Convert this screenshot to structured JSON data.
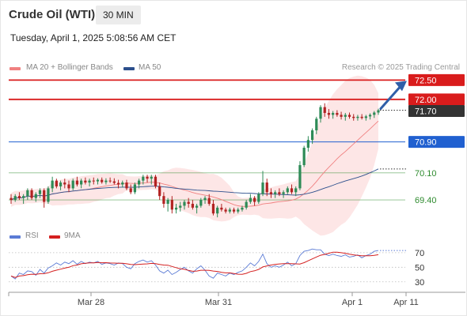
{
  "header": {
    "title": "Crude Oil (WTI)",
    "timeframe": "30 MIN",
    "datetime": "Tuesday, April 1, 2025 5:08:56 AM CET"
  },
  "legend": {
    "ma20": {
      "label": "MA 20 + Bollinger Bands",
      "color": "#f08080"
    },
    "ma50": {
      "label": "MA 50",
      "color": "#2c4f8c"
    },
    "credit": "Research © 2025 Trading Central"
  },
  "rsi_legend": {
    "rsi": {
      "label": "RSI",
      "color": "#5b7bd5"
    },
    "ma9": {
      "label": "9MA",
      "color": "#d42020"
    }
  },
  "colors": {
    "up": "#2e8b57",
    "down": "#b22222",
    "resistance": "#d91c1c",
    "pivot": "#2060d0",
    "support": "#2e8b2e",
    "band_fill": "#fde2e2",
    "price_box": "#333333",
    "arrow": "#2f5fa8"
  },
  "chart_data": {
    "type": "candlestick",
    "x_ticks": [
      "Mar 28",
      "Mar 31",
      "Apr 1",
      "Apr 11"
    ],
    "ylim": [
      68.85,
      72.65
    ],
    "levels": [
      {
        "value": 72.5,
        "label": "72.50",
        "kind": "resistance"
      },
      {
        "value": 72.0,
        "label": "72.00",
        "kind": "resistance"
      },
      {
        "value": 70.9,
        "label": "70.90",
        "kind": "pivot"
      },
      {
        "value": 70.1,
        "label": "70.10",
        "kind": "support"
      },
      {
        "value": 69.4,
        "label": "69.40",
        "kind": "support"
      }
    ],
    "last_price": {
      "value": 71.7,
      "label": "71.70"
    },
    "ohlc": [
      [
        69.45,
        69.55,
        69.3,
        69.4
      ],
      [
        69.4,
        69.55,
        69.35,
        69.5
      ],
      [
        69.5,
        69.6,
        69.4,
        69.45
      ],
      [
        69.45,
        69.55,
        69.3,
        69.5
      ],
      [
        69.5,
        69.7,
        69.4,
        69.65
      ],
      [
        69.65,
        69.7,
        69.4,
        69.45
      ],
      [
        69.45,
        69.6,
        69.35,
        69.55
      ],
      [
        69.55,
        69.7,
        69.45,
        69.65
      ],
      [
        69.65,
        69.7,
        69.2,
        69.35
      ],
      [
        69.35,
        69.75,
        69.3,
        69.7
      ],
      [
        69.7,
        70.0,
        69.6,
        69.9
      ],
      [
        69.9,
        69.95,
        69.7,
        69.75
      ],
      [
        69.75,
        69.9,
        69.65,
        69.85
      ],
      [
        69.85,
        69.95,
        69.7,
        69.8
      ],
      [
        69.8,
        69.9,
        69.6,
        69.7
      ],
      [
        69.7,
        69.95,
        69.65,
        69.9
      ],
      [
        69.9,
        70.0,
        69.75,
        69.8
      ],
      [
        69.8,
        69.95,
        69.7,
        69.9
      ],
      [
        69.9,
        69.98,
        69.8,
        69.85
      ],
      [
        69.85,
        69.95,
        69.75,
        69.9
      ],
      [
        69.9,
        69.98,
        69.8,
        69.88
      ],
      [
        69.88,
        69.96,
        69.8,
        69.92
      ],
      [
        69.92,
        69.98,
        69.82,
        69.86
      ],
      [
        69.86,
        69.96,
        69.8,
        69.9
      ],
      [
        69.9,
        69.98,
        69.84,
        69.88
      ],
      [
        69.88,
        69.96,
        69.8,
        69.84
      ],
      [
        69.84,
        69.92,
        69.7,
        69.8
      ],
      [
        69.8,
        69.9,
        69.72,
        69.85
      ],
      [
        69.85,
        69.92,
        69.65,
        69.7
      ],
      [
        69.7,
        69.8,
        69.55,
        69.6
      ],
      [
        69.6,
        69.85,
        69.55,
        69.8
      ],
      [
        69.8,
        69.95,
        69.7,
        69.9
      ],
      [
        69.9,
        70.05,
        69.8,
        70.0
      ],
      [
        70.0,
        70.05,
        69.85,
        69.95
      ],
      [
        69.95,
        70.05,
        69.8,
        70.0
      ],
      [
        70.0,
        70.05,
        69.7,
        69.75
      ],
      [
        69.75,
        69.85,
        69.4,
        69.5
      ],
      [
        69.5,
        69.6,
        69.2,
        69.3
      ],
      [
        69.3,
        69.45,
        69.1,
        69.4
      ],
      [
        69.4,
        69.5,
        69.05,
        69.15
      ],
      [
        69.15,
        69.3,
        69.05,
        69.2
      ],
      [
        69.2,
        69.35,
        69.1,
        69.25
      ],
      [
        69.25,
        69.4,
        69.15,
        69.35
      ],
      [
        69.35,
        69.45,
        69.2,
        69.3
      ],
      [
        69.3,
        69.4,
        69.15,
        69.2
      ],
      [
        69.2,
        69.3,
        69.05,
        69.25
      ],
      [
        69.25,
        69.45,
        69.2,
        69.4
      ],
      [
        69.4,
        69.5,
        69.3,
        69.45
      ],
      [
        69.45,
        69.55,
        69.25,
        69.3
      ],
      [
        69.3,
        69.4,
        69.0,
        69.05
      ],
      [
        69.05,
        69.25,
        68.95,
        69.2
      ],
      [
        69.2,
        69.3,
        69.1,
        69.15
      ],
      [
        69.15,
        69.2,
        69.05,
        69.1
      ],
      [
        69.1,
        69.2,
        69.05,
        69.15
      ],
      [
        69.15,
        69.2,
        69.05,
        69.1
      ],
      [
        69.1,
        69.2,
        69.05,
        69.15
      ],
      [
        69.15,
        69.25,
        69.1,
        69.2
      ],
      [
        69.2,
        69.4,
        69.15,
        69.35
      ],
      [
        69.35,
        69.55,
        69.3,
        69.45
      ],
      [
        69.45,
        69.5,
        69.25,
        69.35
      ],
      [
        69.35,
        69.6,
        69.3,
        69.55
      ],
      [
        69.55,
        70.15,
        69.5,
        69.85
      ],
      [
        69.85,
        69.95,
        69.5,
        69.6
      ],
      [
        69.6,
        69.7,
        69.45,
        69.55
      ],
      [
        69.55,
        69.65,
        69.45,
        69.6
      ],
      [
        69.6,
        69.7,
        69.5,
        69.55
      ],
      [
        69.55,
        69.65,
        69.45,
        69.6
      ],
      [
        69.6,
        69.75,
        69.55,
        69.7
      ],
      [
        69.7,
        69.8,
        69.55,
        69.6
      ],
      [
        69.6,
        69.75,
        69.5,
        69.7
      ],
      [
        69.7,
        70.4,
        69.65,
        70.3
      ],
      [
        70.3,
        70.8,
        70.25,
        70.75
      ],
      [
        70.75,
        71.05,
        70.65,
        70.95
      ],
      [
        70.95,
        71.25,
        70.85,
        71.2
      ],
      [
        71.2,
        71.55,
        71.1,
        71.5
      ],
      [
        71.5,
        71.85,
        71.4,
        71.8
      ],
      [
        71.8,
        71.9,
        71.55,
        71.65
      ],
      [
        71.65,
        71.75,
        71.5,
        71.6
      ],
      [
        71.6,
        71.7,
        71.5,
        71.65
      ],
      [
        71.65,
        71.72,
        71.55,
        71.6
      ],
      [
        71.6,
        71.68,
        71.48,
        71.55
      ],
      [
        71.55,
        71.65,
        71.45,
        71.6
      ],
      [
        71.6,
        71.66,
        71.5,
        71.55
      ],
      [
        71.55,
        71.62,
        71.45,
        71.52
      ],
      [
        71.52,
        71.6,
        71.45,
        71.55
      ],
      [
        71.55,
        71.62,
        71.48,
        71.52
      ],
      [
        71.52,
        71.6,
        71.45,
        71.56
      ],
      [
        71.56,
        71.64,
        71.48,
        71.6
      ],
      [
        71.6,
        71.7,
        71.52,
        71.66
      ],
      [
        71.66,
        71.76,
        71.6,
        71.72
      ]
    ],
    "rsi": {
      "label": "RSI",
      "ticks": [
        70,
        50,
        30
      ],
      "ylim": [
        20,
        85
      ],
      "values": [
        38,
        34,
        42,
        40,
        45,
        44,
        39,
        47,
        42,
        49,
        52,
        56,
        53,
        57,
        55,
        59,
        54,
        58,
        55,
        57,
        56,
        58,
        54,
        56,
        55,
        53,
        56,
        55,
        50,
        48,
        55,
        58,
        60,
        57,
        59,
        53,
        45,
        42,
        46,
        40,
        43,
        47,
        50,
        45,
        42,
        48,
        52,
        46,
        38,
        35,
        42,
        40,
        38,
        42,
        40,
        43,
        45,
        50,
        56,
        52,
        58,
        68,
        55,
        50,
        52,
        50,
        53,
        57,
        52,
        55,
        66,
        72,
        73,
        75,
        74,
        74,
        68,
        66,
        68,
        66,
        65,
        67,
        64,
        65,
        67,
        63,
        66,
        68,
        72,
        73
      ]
    }
  }
}
